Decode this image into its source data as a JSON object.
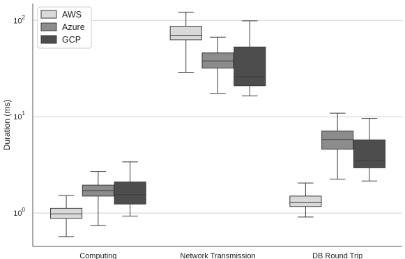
{
  "chart_data": {
    "type": "box",
    "title": "",
    "xlabel": "",
    "ylabel": "Duration (ms)",
    "yscale": "log",
    "ylim": [
      0.45,
      150
    ],
    "yticks": [
      {
        "value": 1,
        "base": "10",
        "exp": "0"
      },
      {
        "value": 10,
        "base": "10",
        "exp": "1"
      },
      {
        "value": 100,
        "base": "10",
        "exp": "2"
      }
    ],
    "grid": "horizontal",
    "legend": {
      "placement": "top-left"
    },
    "categories": [
      "Computing",
      "Network Transmission",
      "DB Round Trip"
    ],
    "series": [
      {
        "name": "AWS",
        "color": "#d9d9d9",
        "boxes": [
          {
            "whisker_low": 0.57,
            "q1": 0.88,
            "median": 0.98,
            "q3": 1.12,
            "whisker_high": 1.52
          },
          {
            "whisker_low": 29,
            "q1": 63,
            "median": 70,
            "q3": 87,
            "whisker_high": 122
          },
          {
            "whisker_low": 0.91,
            "q1": 1.17,
            "median": 1.28,
            "q3": 1.5,
            "whisker_high": 2.05
          }
        ]
      },
      {
        "name": "Azure",
        "color": "#8c8c8c",
        "boxes": [
          {
            "whisker_low": 0.74,
            "q1": 1.5,
            "median": 1.71,
            "q3": 1.95,
            "whisker_high": 2.7
          },
          {
            "whisker_low": 17.5,
            "q1": 32,
            "median": 38,
            "q3": 46,
            "whisker_high": 67
          },
          {
            "whisker_low": 2.25,
            "q1": 4.6,
            "median": 5.8,
            "q3": 7.1,
            "whisker_high": 10.9
          }
        ]
      },
      {
        "name": "GCP",
        "color": "#4d4d4d",
        "boxes": [
          {
            "whisker_low": 0.93,
            "q1": 1.24,
            "median": 1.55,
            "q3": 2.1,
            "whisker_high": 3.4
          },
          {
            "whisker_low": 16.5,
            "q1": 21,
            "median": 26,
            "q3": 53,
            "whisker_high": 99
          },
          {
            "whisker_low": 2.15,
            "q1": 2.95,
            "median": 3.5,
            "q3": 5.75,
            "whisker_high": 9.6
          }
        ]
      }
    ]
  }
}
